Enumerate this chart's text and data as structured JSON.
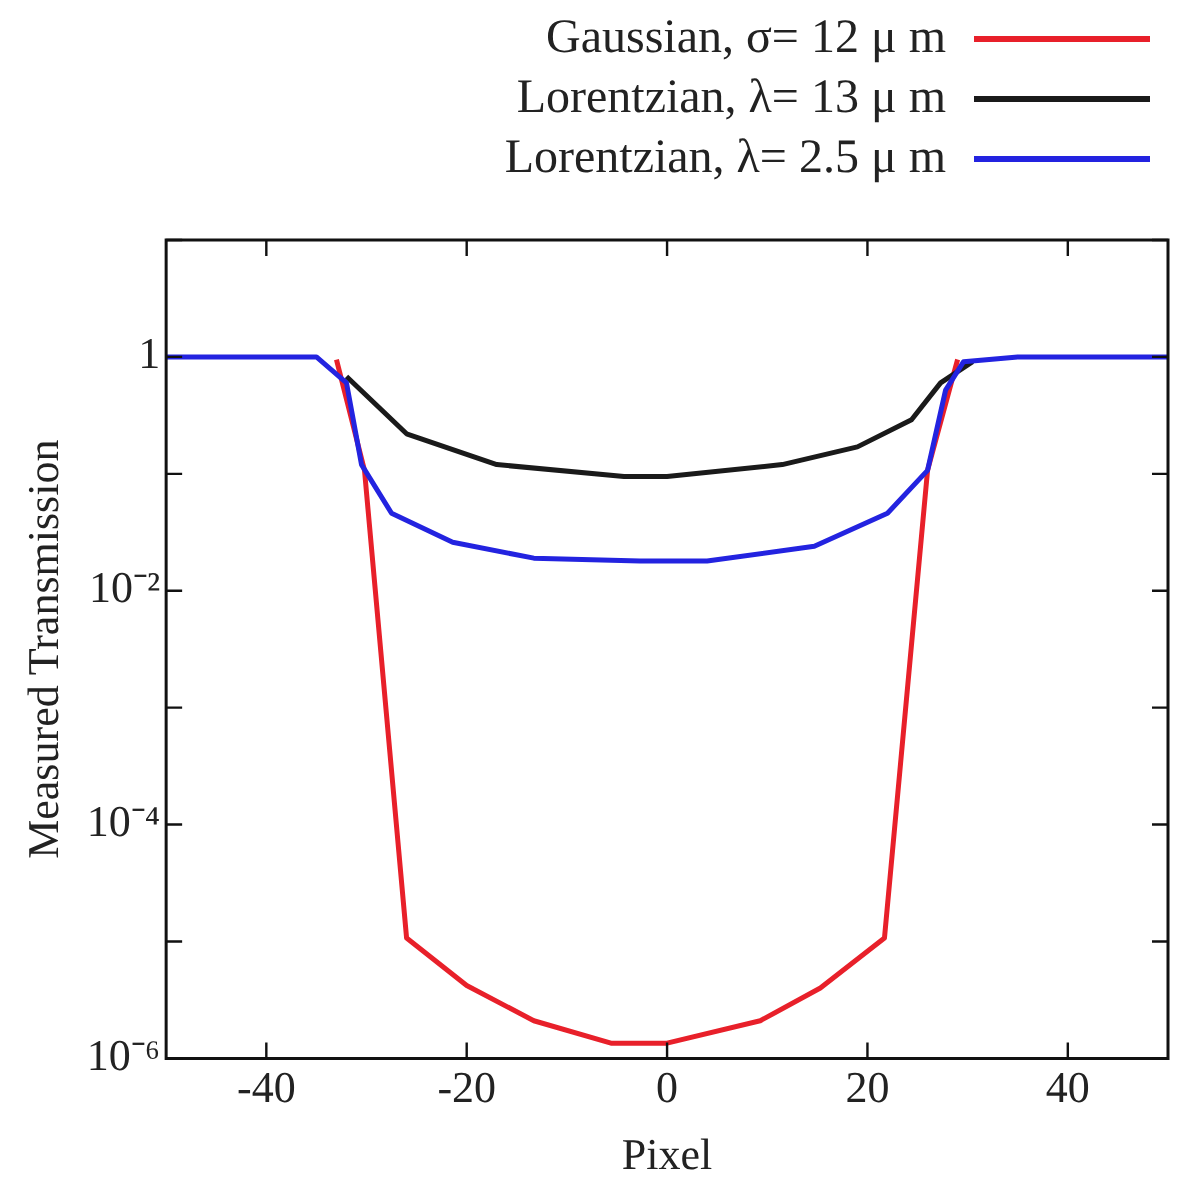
{
  "chart_data": {
    "type": "line",
    "xlabel": "Pixel",
    "ylabel": "Measured Transmission",
    "log": "y",
    "xlim": [
      -50,
      50
    ],
    "xticks": [
      -40,
      -20,
      0,
      20,
      40
    ],
    "ylim": [
      1e-06,
      10
    ],
    "yticks": [
      {
        "value": 1e-06,
        "label": "10⁻⁶"
      },
      {
        "value": 1e-05,
        "label": null
      },
      {
        "value": 0.0001,
        "label": "10⁻⁴"
      },
      {
        "value": 0.001,
        "label": null
      },
      {
        "value": 0.01,
        "label": "10⁻²"
      },
      {
        "value": 0.1,
        "label": null
      },
      {
        "value": 1,
        "label": "1"
      },
      {
        "value": 10,
        "label": null
      }
    ],
    "grid": false,
    "legend": "top right",
    "marker": "none",
    "line_style": "solid",
    "series": [
      {
        "name": "Gaussian, σ= 12 μ m",
        "color": "#e8202a",
        "x": [
          -33,
          -30.2,
          -26,
          -20,
          -13.3,
          -5.6,
          0,
          9.3,
          15.3,
          21.7,
          26,
          29
        ],
        "values": [
          0.95,
          0.107,
          1.07e-05,
          4.2e-06,
          2.1e-06,
          1.35e-06,
          1.35e-06,
          2.1e-06,
          4e-06,
          1.07e-05,
          0.107,
          0.95
        ]
      },
      {
        "name": "Lorentzian, λ= 13 μ m",
        "color": "#1a1a1a",
        "x": [
          -32,
          -26,
          -17,
          -4.3,
          0,
          11.5,
          19,
          24.4,
          27.3,
          30.5
        ],
        "values": [
          0.68,
          0.22,
          0.12,
          0.095,
          0.095,
          0.12,
          0.17,
          0.29,
          0.6,
          0.91
        ]
      },
      {
        "name": "Lorentzian, λ= 2.5 μ m",
        "color": "#2323e0",
        "x": [
          -50,
          -40,
          -35,
          -32,
          -30.5,
          -27.5,
          -21.4,
          -13.3,
          -2.7,
          4,
          14.7,
          22,
          26,
          27.8,
          29.6,
          35,
          40,
          50
        ],
        "values": [
          1,
          1,
          1,
          0.6,
          0.12,
          0.046,
          0.026,
          0.019,
          0.018,
          0.018,
          0.024,
          0.046,
          0.107,
          0.52,
          0.91,
          1,
          1,
          1
        ]
      }
    ]
  }
}
